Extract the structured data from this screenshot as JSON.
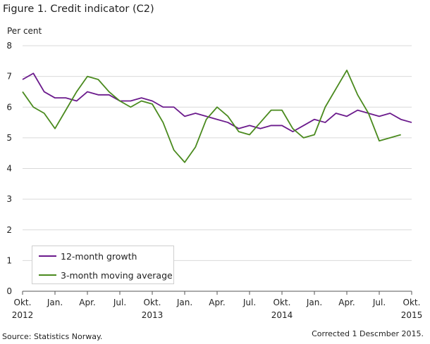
{
  "title": "Figure 1. Credit indicator (C2)",
  "y_axis_label": "Per cent",
  "source": "Source: Statistics Norway.",
  "note": "Corrected 1 Descmber 2015.",
  "colors": {
    "growth": "#6b1a8c",
    "moving_average": "#4a8a1e",
    "grid": "#d9d9d9",
    "axis": "#555555"
  },
  "chart_data": {
    "type": "line",
    "title": "Figure 1. Credit indicator (C2)",
    "ylabel": "Per cent",
    "xlabel": "",
    "ylim": [
      0,
      8
    ],
    "yticks": [
      "0",
      "1",
      "2",
      "3",
      "4",
      "5",
      "6",
      "7",
      "8"
    ],
    "x_start": "2012-10",
    "x_ticks": [
      {
        "label": "Okt.",
        "year": "2012",
        "month_index": 0
      },
      {
        "label": "Jan.",
        "year": "",
        "month_index": 3
      },
      {
        "label": "Apr.",
        "year": "",
        "month_index": 6
      },
      {
        "label": "Jul.",
        "year": "",
        "month_index": 9
      },
      {
        "label": "Okt.",
        "year": "2013",
        "month_index": 12
      },
      {
        "label": "Jan.",
        "year": "",
        "month_index": 15
      },
      {
        "label": "Apr.",
        "year": "",
        "month_index": 18
      },
      {
        "label": "Jul.",
        "year": "",
        "month_index": 21
      },
      {
        "label": "Okt.",
        "year": "2014",
        "month_index": 24
      },
      {
        "label": "Jan.",
        "year": "",
        "month_index": 27
      },
      {
        "label": "Apr.",
        "year": "",
        "month_index": 30
      },
      {
        "label": "Jul.",
        "year": "",
        "month_index": 33
      },
      {
        "label": "Okt.",
        "year": "2015",
        "month_index": 36
      }
    ],
    "legend_position": "bottom-left",
    "series": [
      {
        "name": "12-month growth",
        "color": "#6b1a8c",
        "values": [
          6.9,
          7.1,
          6.5,
          6.3,
          6.3,
          6.2,
          6.5,
          6.4,
          6.4,
          6.2,
          6.2,
          6.3,
          6.2,
          6.0,
          6.0,
          5.7,
          5.8,
          5.7,
          5.6,
          5.5,
          5.3,
          5.4,
          5.3,
          5.4,
          5.4,
          5.2,
          5.4,
          5.6,
          5.5,
          5.8,
          5.7,
          5.9,
          5.8,
          5.7,
          5.8,
          5.6,
          5.5
        ]
      },
      {
        "name": "3-month moving average",
        "color": "#4a8a1e",
        "values": [
          6.5,
          6.0,
          5.8,
          5.3,
          5.9,
          6.5,
          7.0,
          6.9,
          6.5,
          6.2,
          6.0,
          6.2,
          6.1,
          5.5,
          4.6,
          4.2,
          4.7,
          5.6,
          6.0,
          5.7,
          5.2,
          5.1,
          5.5,
          5.9,
          5.9,
          5.3,
          5.0,
          5.1,
          6.0,
          6.6,
          7.2,
          6.4,
          5.8,
          4.9,
          5.0,
          5.1
        ]
      }
    ]
  }
}
